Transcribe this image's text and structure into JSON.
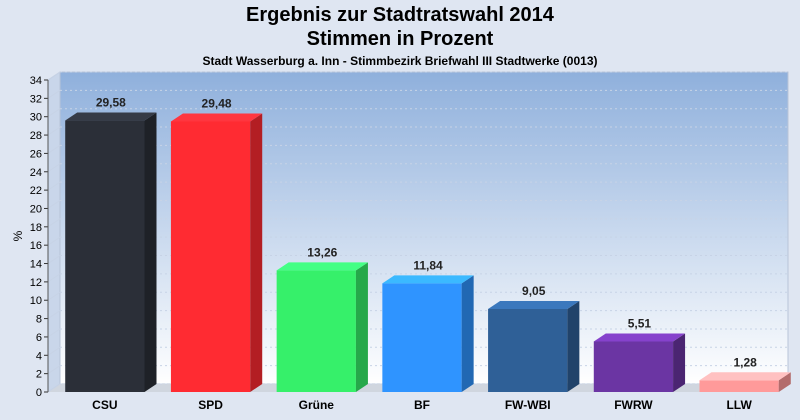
{
  "header": {
    "title_line1": "Ergebnis zur Stadtratswahl 2014",
    "title_line2": "Stimmen in Prozent",
    "subtitle": "Stadt Wasserburg a. Inn - Stimmbezirk Briefwahl III Stadtwerke (0013)"
  },
  "chart_data": {
    "type": "bar",
    "title": "Ergebnis zur Stadtratswahl 2014",
    "subtitle": "Stimmen in Prozent",
    "ylabel": "%",
    "xlabel": "",
    "ylim": [
      0,
      34
    ],
    "ytick_step": 2,
    "grid": true,
    "categories": [
      "CSU",
      "SPD",
      "Grüne",
      "BF",
      "FW-WBI",
      "FWRW",
      "LLW"
    ],
    "values": [
      29.58,
      29.48,
      13.26,
      11.84,
      9.05,
      5.51,
      1.28
    ],
    "value_labels": [
      "29,58",
      "29,48",
      "13,26",
      "11,84",
      "9,05",
      "5,51",
      "1,28"
    ],
    "colors": [
      "#2b2f38",
      "#ff2b32",
      "#36f06a",
      "#2f94ff",
      "#2f6097",
      "#6b35a3",
      "#ff9a9a"
    ]
  }
}
